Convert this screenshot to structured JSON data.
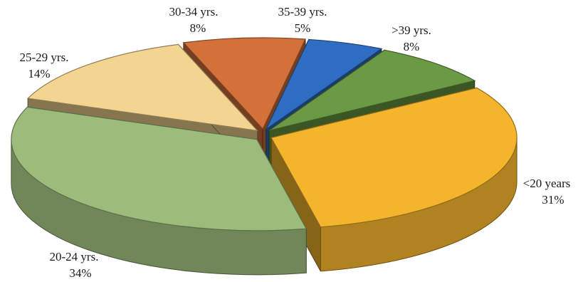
{
  "chart_data": {
    "type": "pie",
    "title": "",
    "style": "3d-exploded",
    "start_category": "35-39 yrs.",
    "direction": "clockwise",
    "slices": [
      {
        "category": "35-39 yrs.",
        "value": 5,
        "label_line1": "35-39 yrs.",
        "label_line2": "5%",
        "color": "#2E6DC2"
      },
      {
        "category": ">39 yrs.",
        "value": 8,
        "label_line1": ">39 yrs.",
        "label_line2": "8%",
        "color": "#6B9A44"
      },
      {
        "category": "<20 years",
        "value": 31,
        "label_line1": "<20 years",
        "label_line2": "31%",
        "color": "#F4B52C"
      },
      {
        "category": "20-24 yrs.",
        "value": 34,
        "label_line1": "20-24 yrs.",
        "label_line2": "34%",
        "color": "#9DBC7C"
      },
      {
        "category": "25-29 yrs.",
        "value": 14,
        "label_line1": "25-29 yrs.",
        "label_line2": "14%",
        "color": "#F3D490"
      },
      {
        "category": "30-34 yrs.",
        "value": 8,
        "label_line1": "30-34 yrs.",
        "label_line2": "8%",
        "color": "#D4713A"
      }
    ]
  }
}
